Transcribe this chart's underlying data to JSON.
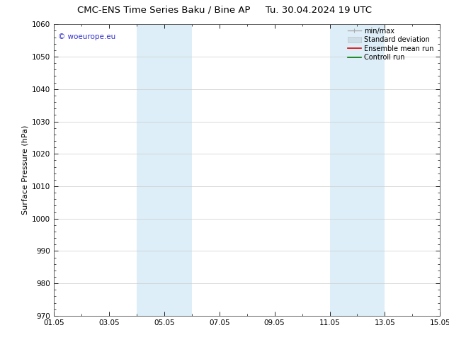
{
  "title_left": "CMC-ENS Time Series Baku / Bine AP",
  "title_right": "Tu. 30.04.2024 19 UTC",
  "ylabel": "Surface Pressure (hPa)",
  "ylim": [
    970,
    1060
  ],
  "yticks": [
    970,
    980,
    990,
    1000,
    1010,
    1020,
    1030,
    1040,
    1050,
    1060
  ],
  "xlim_start": 0.0,
  "xlim_end": 14.0,
  "xtick_labels": [
    "01.05",
    "03.05",
    "05.05",
    "07.05",
    "09.05",
    "11.05",
    "13.05",
    "15.05"
  ],
  "xtick_positions": [
    0,
    2,
    4,
    6,
    8,
    10,
    12,
    14
  ],
  "shaded_bands": [
    {
      "x_start": 3.0,
      "x_end": 5.0
    },
    {
      "x_start": 10.0,
      "x_end": 12.0
    }
  ],
  "shade_color": "#ddeef8",
  "background_color": "#ffffff",
  "watermark_text": "© woeurope.eu",
  "watermark_color": "#3333cc",
  "legend_entries": [
    {
      "label": "min/max",
      "color": "#aaaaaa",
      "linestyle": "-",
      "linewidth": 1.0
    },
    {
      "label": "Standard deviation",
      "color": "#ccdde8",
      "linestyle": "-",
      "linewidth": 6
    },
    {
      "label": "Ensemble mean run",
      "color": "#dd0000",
      "linestyle": "-",
      "linewidth": 1.2
    },
    {
      "label": "Controll run",
      "color": "#007700",
      "linestyle": "-",
      "linewidth": 1.2
    }
  ],
  "grid_color": "#cccccc",
  "title_fontsize": 9.5,
  "axis_fontsize": 8,
  "tick_fontsize": 7.5,
  "watermark_fontsize": 7.5,
  "legend_fontsize": 7.0
}
